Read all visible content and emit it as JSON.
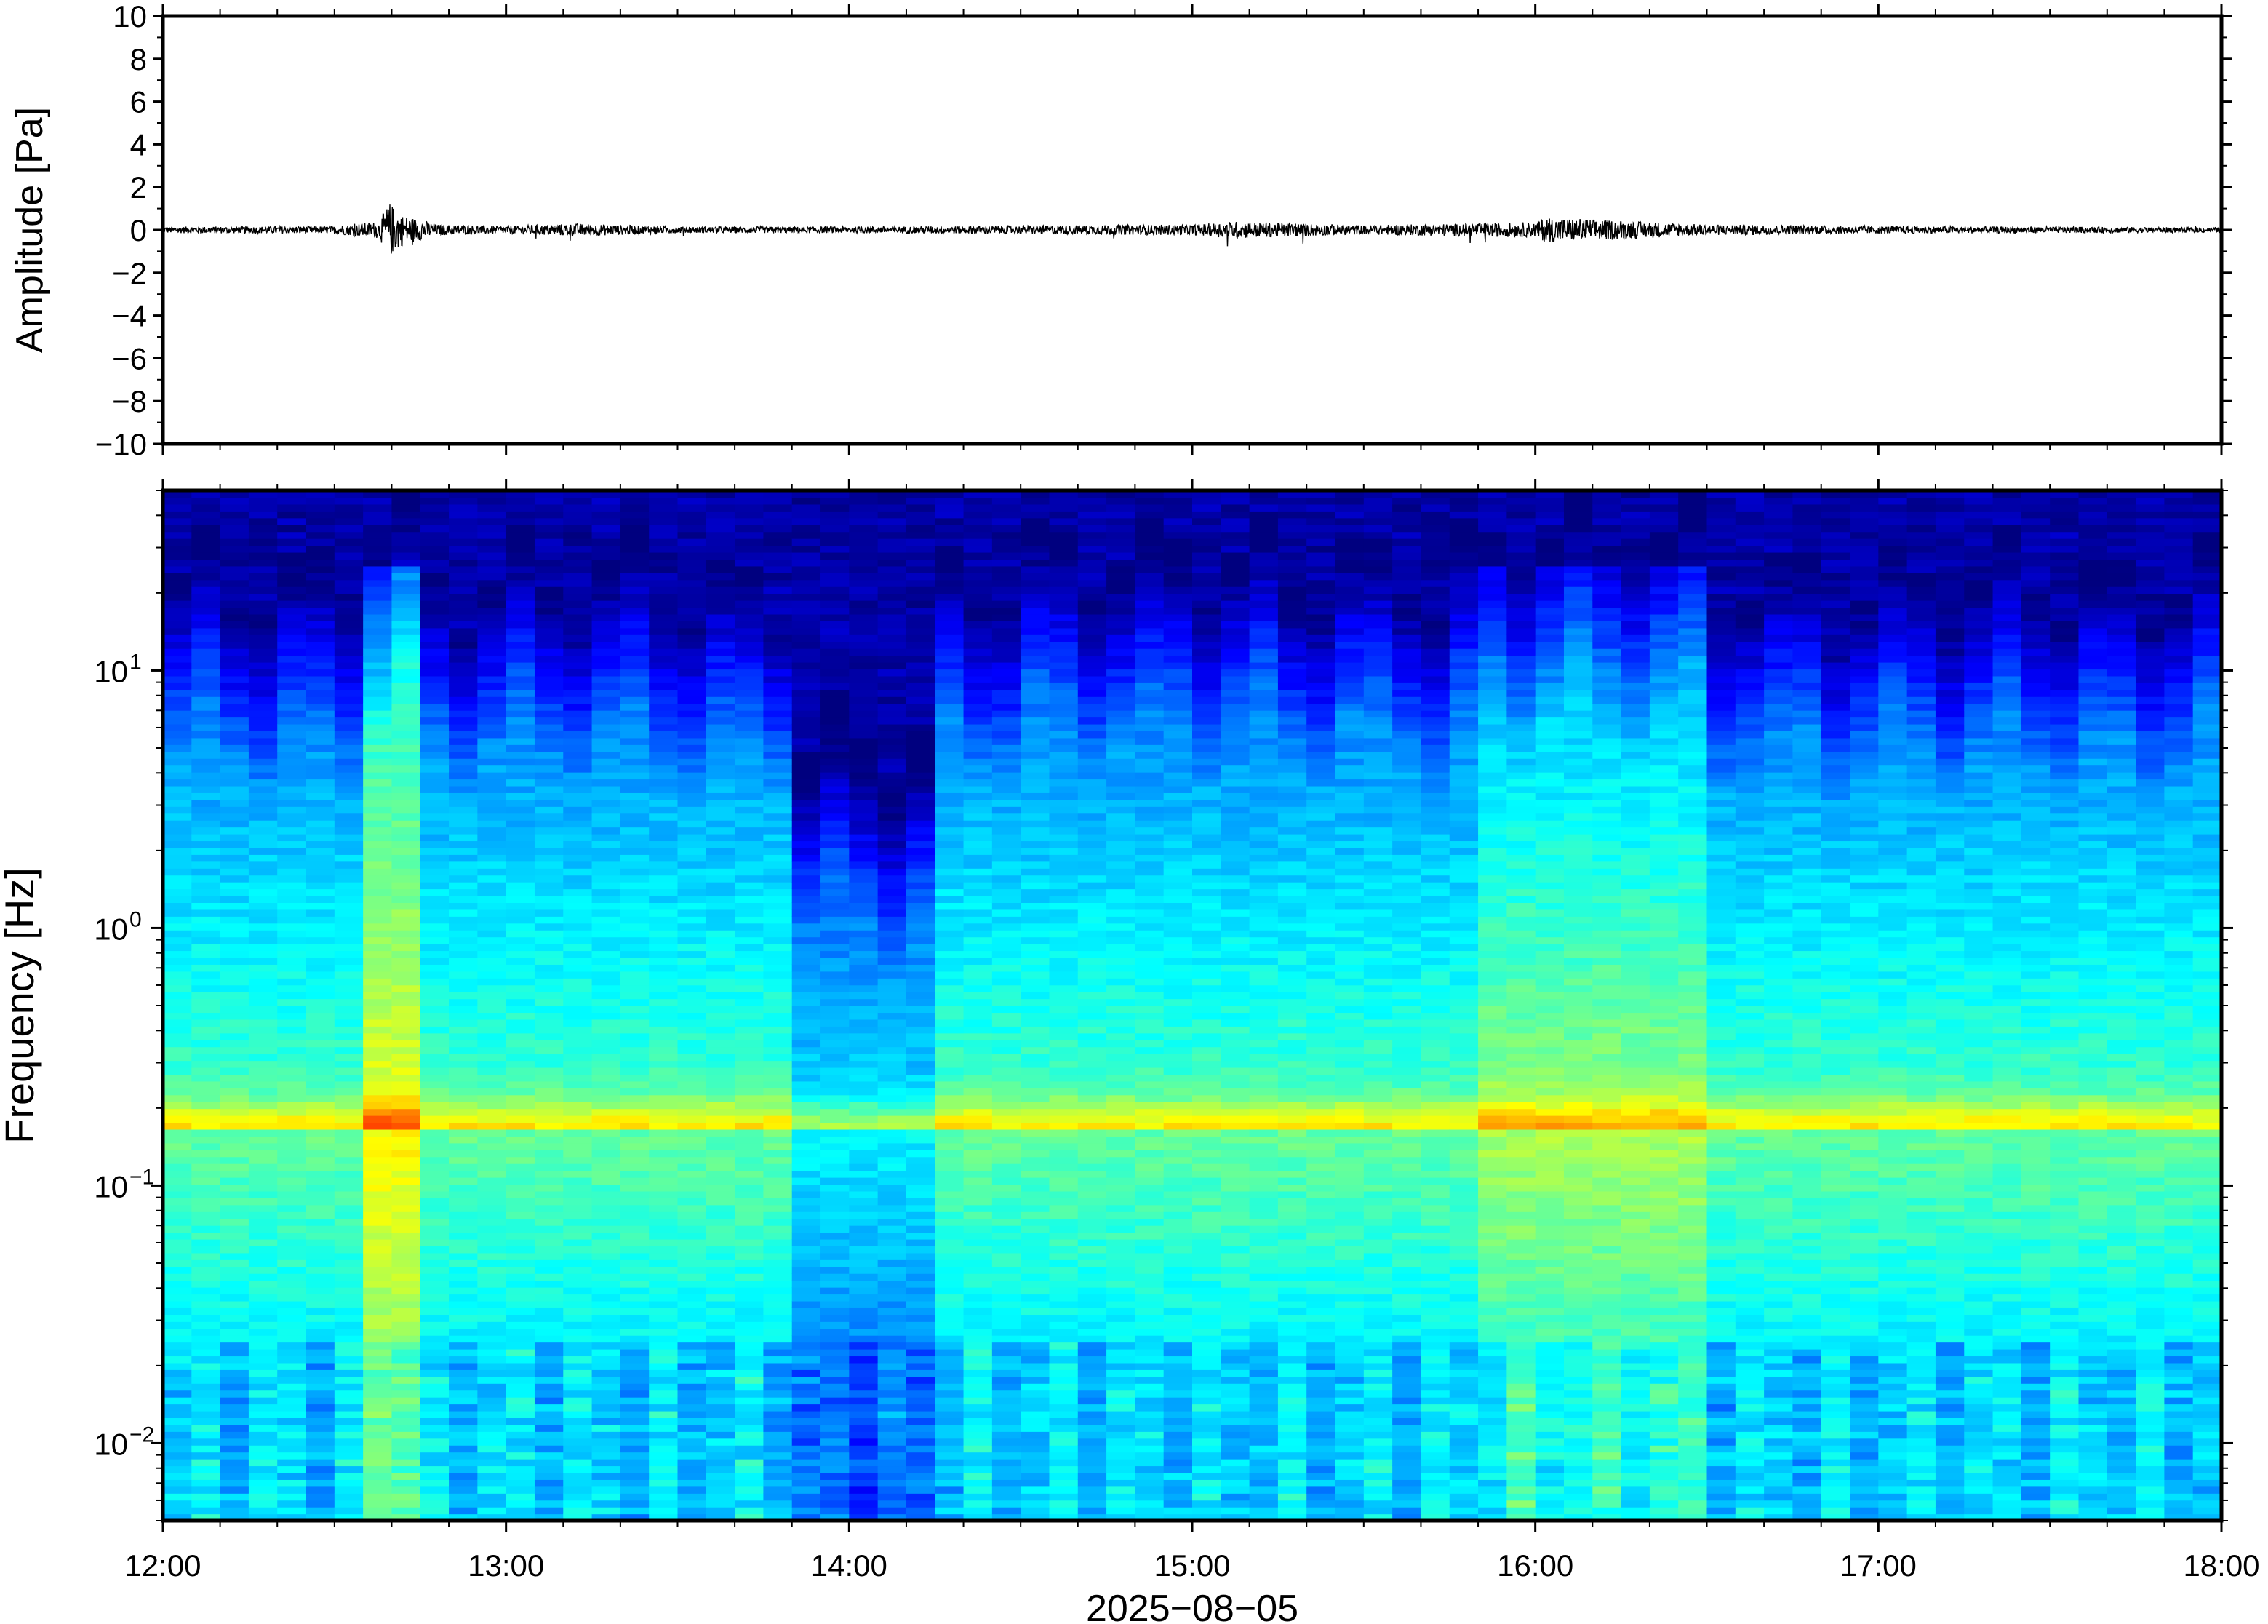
{
  "chart_data": [
    {
      "type": "line",
      "ylabel": "Amplitude [Pa]",
      "xlabel": "",
      "ylim": [
        -10,
        10
      ],
      "y_ticks": [
        10,
        8,
        6,
        4,
        2,
        0,
        -2,
        -4,
        -6,
        -8,
        -10
      ],
      "y_tick_labels": [
        "10",
        "8",
        "6",
        "4",
        "2",
        "0",
        "−2",
        "−4",
        "−6",
        "−8",
        "−10"
      ],
      "x_range": [
        "12:00",
        "18:00"
      ],
      "grid": false,
      "series": [
        {
          "color": "#000000",
          "x_hours": [
            12.0,
            12.5,
            12.63,
            12.66,
            12.7,
            12.75,
            12.8,
            13.0,
            13.2,
            13.5,
            14.0,
            14.5,
            15.0,
            15.13,
            15.5,
            16.0,
            16.03,
            16.5,
            17.0,
            17.5,
            18.0
          ],
          "noise_amplitude": [
            0.15,
            0.18,
            0.4,
            1.3,
            0.7,
            0.5,
            0.25,
            0.18,
            0.3,
            0.15,
            0.15,
            0.2,
            0.25,
            0.4,
            0.22,
            0.35,
            0.6,
            0.25,
            0.18,
            0.15,
            0.12
          ]
        }
      ]
    },
    {
      "type": "heatmap",
      "ylabel": "Frequency [Hz]",
      "xlabel": "2025−08−05",
      "yscale": "log",
      "ylim": [
        0.005,
        50
      ],
      "y_tick_values": [
        0.01,
        0.1,
        1,
        10
      ],
      "y_tick_labels": [
        {
          "base": "10",
          "exp": "−2"
        },
        {
          "base": "10",
          "exp": "−1"
        },
        {
          "base": "10",
          "exp": "0"
        },
        {
          "base": "10",
          "exp": "1"
        }
      ],
      "x_tick_labels": [
        "12:00",
        "13:00",
        "14:00",
        "15:00",
        "16:00",
        "17:00",
        "18:00"
      ],
      "x_tick_hours": [
        12,
        13,
        14,
        15,
        16,
        17,
        18
      ],
      "colormap": "jet",
      "colormap_stops": [
        "#00007f",
        "#0000ff",
        "#007fff",
        "#00ffff",
        "#7fff7f",
        "#ffff00",
        "#ff7f00",
        "#ff0000"
      ],
      "microseism_peak_hz": 0.165,
      "high_energy_intervals": [
        {
          "start": "12:37",
          "end": "12:47",
          "level": "high"
        },
        {
          "start": "15:48",
          "end": "16:30",
          "level": "elevated"
        }
      ],
      "low_energy_intervals": [
        {
          "start": "13:50",
          "end": "14:15",
          "level": "low"
        }
      ]
    }
  ]
}
